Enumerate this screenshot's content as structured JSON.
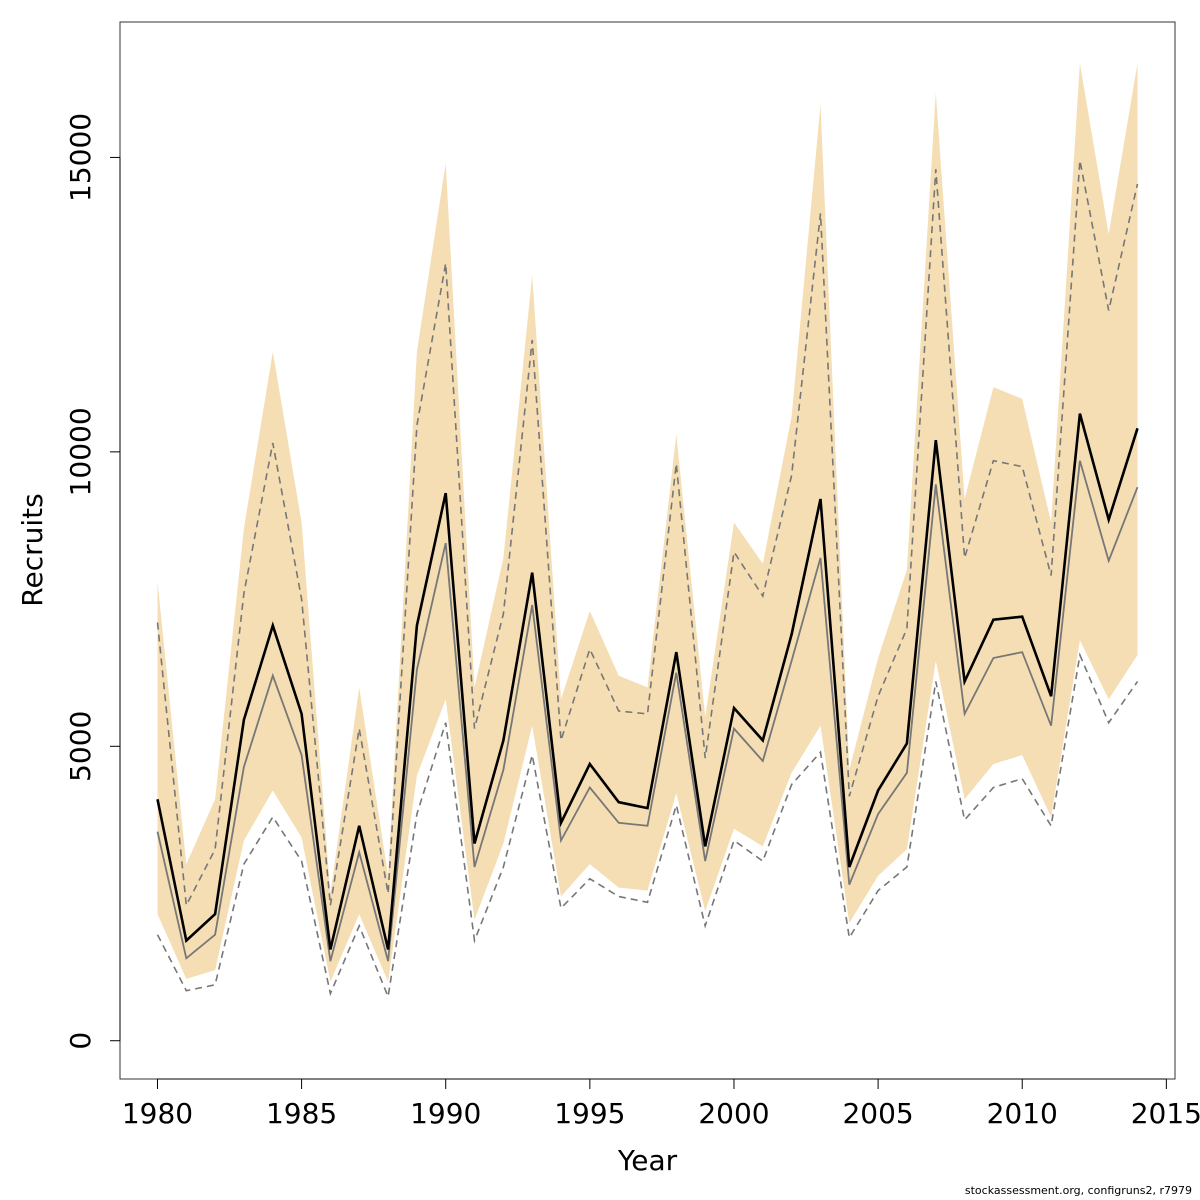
{
  "chart_data": {
    "type": "line",
    "xlabel": "Year",
    "ylabel": "Recruits",
    "xlim": [
      1978.7,
      2015.3
    ],
    "ylim": [
      -650,
      17300
    ],
    "x_ticks": [
      "1980",
      "1985",
      "1990",
      "1995",
      "2000",
      "2005",
      "2010",
      "2015"
    ],
    "y_ticks": [
      "0",
      "5000",
      "10000",
      "15000"
    ],
    "grid": false,
    "legend": "none",
    "colors": {
      "band": "#f5deb3",
      "main_line": "#000000",
      "secondary_line": "#777777",
      "dashed_line": "#777777",
      "frame": "#333333"
    },
    "x": [
      1980,
      1981,
      1982,
      1983,
      1984,
      1985,
      1986,
      1987,
      1988,
      1989,
      1990,
      1991,
      1992,
      1993,
      1994,
      1995,
      1996,
      1997,
      1998,
      1999,
      2000,
      2001,
      2002,
      2003,
      2004,
      2005,
      2006,
      2007,
      2008,
      2009,
      2010,
      2011,
      2012,
      2013,
      2014
    ],
    "series": [
      {
        "role": "band",
        "upper": [
          7800,
          3000,
          4100,
          8700,
          11700,
          8800,
          2500,
          6000,
          2800,
          11700,
          14900,
          6000,
          8200,
          13000,
          5800,
          7300,
          6200,
          6000,
          10300,
          5500,
          8800,
          8100,
          10600,
          15900,
          4600,
          6500,
          8000,
          16100,
          9200,
          11100,
          10900,
          8800,
          16600,
          13700,
          16600
        ],
        "lower": [
          2150,
          1050,
          1200,
          3400,
          4250,
          3450,
          1000,
          2150,
          1000,
          4500,
          5800,
          2050,
          3350,
          5350,
          2450,
          3000,
          2600,
          2550,
          4200,
          2200,
          3600,
          3300,
          4550,
          5350,
          2000,
          2800,
          3250,
          6450,
          4100,
          4700,
          4850,
          3800,
          6800,
          5800,
          6550
        ]
      },
      {
        "role": "main",
        "values": [
          4100,
          1700,
          2150,
          5450,
          7050,
          5550,
          1550,
          3650,
          1550,
          7050,
          9300,
          3350,
          5100,
          7950,
          3700,
          4700,
          4050,
          3950,
          6600,
          3300,
          5650,
          5100,
          6900,
          9200,
          2950,
          4250,
          5050,
          10200,
          6100,
          7150,
          7200,
          5850,
          10650,
          8850,
          10400
        ]
      },
      {
        "role": "secondary",
        "values": [
          3550,
          1400,
          1800,
          4650,
          6200,
          4850,
          1350,
          3200,
          1350,
          6300,
          8450,
          2950,
          4600,
          7400,
          3400,
          4300,
          3700,
          3650,
          6250,
          3050,
          5300,
          4750,
          6450,
          8200,
          2650,
          3850,
          4550,
          9450,
          5550,
          6500,
          6600,
          5350,
          9850,
          8150,
          9400
        ]
      },
      {
        "role": "dashed-upper",
        "values": [
          7100,
          2300,
          3250,
          7600,
          10150,
          7500,
          2300,
          5300,
          2500,
          10450,
          13200,
          5300,
          7250,
          11900,
          5100,
          6650,
          5600,
          5550,
          9800,
          4800,
          8300,
          7550,
          9600,
          14050,
          4150,
          5850,
          7000,
          14800,
          8200,
          9850,
          9750,
          7900,
          14950,
          12400,
          14550
        ]
      },
      {
        "role": "dashed-lower",
        "values": [
          1800,
          850,
          950,
          3000,
          3800,
          3050,
          800,
          1950,
          750,
          3850,
          5400,
          1700,
          2950,
          4850,
          2250,
          2750,
          2450,
          2350,
          4000,
          1950,
          3400,
          3050,
          4350,
          4900,
          1750,
          2550,
          2950,
          6100,
          3750,
          4300,
          4450,
          3650,
          6550,
          5400,
          6100
        ]
      }
    ]
  },
  "credit": "stockassessment.org, configruns2, r7979"
}
